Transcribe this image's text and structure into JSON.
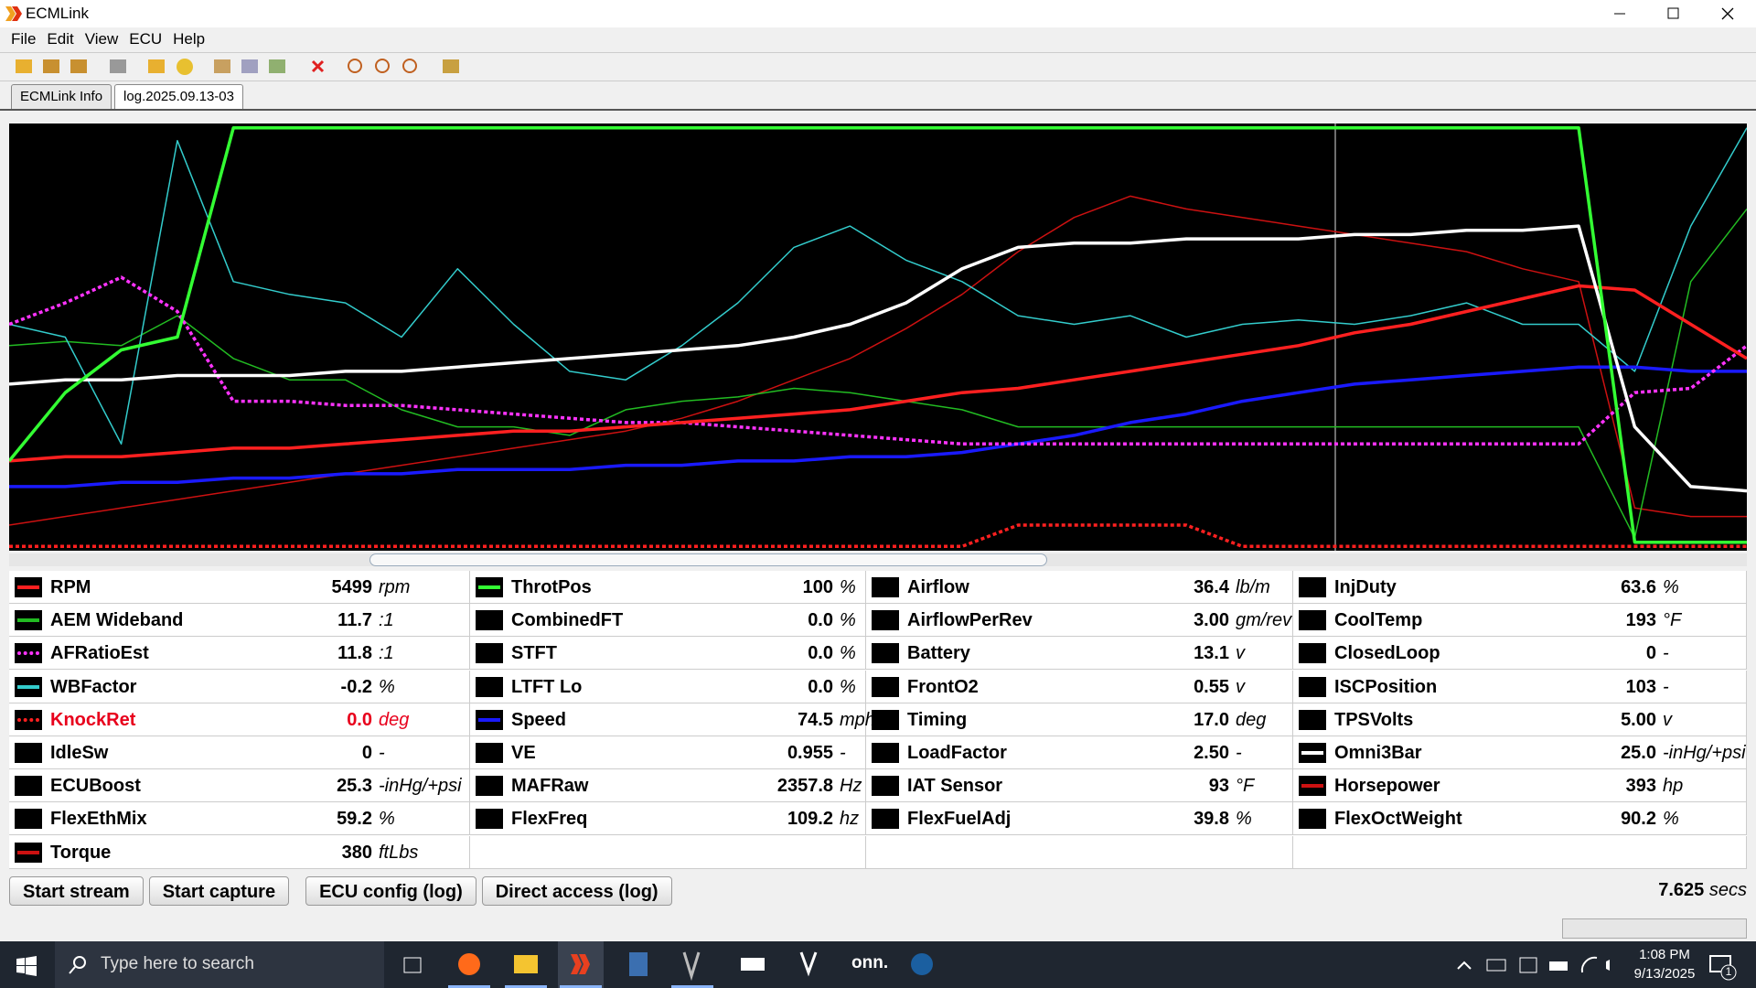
{
  "window": {
    "title": "ECMLink"
  },
  "menu": [
    "File",
    "Edit",
    "View",
    "ECU",
    "Help"
  ],
  "tabs": [
    "ECMLink Info",
    "log.2025.09.13-03"
  ],
  "graph": {
    "traces": [
      {
        "color": "#cc1111",
        "style": "thin",
        "values": [
          6,
          8,
          10,
          12,
          14,
          16,
          18,
          20,
          22,
          24,
          26,
          28,
          31,
          35,
          40,
          45,
          52,
          60,
          70,
          78,
          83,
          80,
          78,
          76,
          74,
          72,
          70,
          66,
          63,
          10,
          8,
          8
        ]
      },
      {
        "color": "#22bb22",
        "style": "thin",
        "values": [
          48,
          49,
          48,
          55,
          45,
          40,
          40,
          33,
          29,
          29,
          27,
          33,
          35,
          36,
          38,
          37,
          35,
          33,
          29,
          29,
          29,
          29,
          29,
          29,
          29,
          29,
          29,
          29,
          29,
          3,
          63,
          80
        ]
      },
      {
        "color": "#33cccc",
        "style": "thin",
        "values": [
          53,
          50,
          25,
          96,
          63,
          60,
          58,
          50,
          66,
          53,
          42,
          40,
          48,
          58,
          71,
          76,
          68,
          63,
          55,
          53,
          55,
          50,
          53,
          54,
          53,
          55,
          58,
          53,
          53,
          42,
          76,
          99
        ]
      },
      {
        "color": "#1a1aff",
        "style": "thick",
        "values": [
          15,
          15,
          16,
          16,
          17,
          17,
          18,
          18,
          19,
          19,
          19,
          20,
          20,
          21,
          21,
          22,
          22,
          23,
          25,
          27,
          30,
          32,
          35,
          37,
          39,
          40,
          41,
          42,
          43,
          43,
          42,
          42
        ]
      },
      {
        "color": "#ff33ff",
        "style": "dotted",
        "values": [
          53,
          58,
          64,
          56,
          35,
          35,
          34,
          34,
          33,
          32,
          31,
          30,
          30,
          29,
          28,
          27,
          26,
          25,
          25,
          25,
          25,
          25,
          25,
          25,
          25,
          25,
          25,
          25,
          25,
          37,
          38,
          48
        ]
      },
      {
        "color": "#ff2020",
        "style": "dotted",
        "values": [
          1,
          1,
          1,
          1,
          1,
          1,
          1,
          1,
          1,
          1,
          1,
          1,
          1,
          1,
          1,
          1,
          1,
          1,
          6,
          6,
          6,
          6,
          1,
          1,
          1,
          1,
          1,
          1,
          1,
          1,
          1,
          1
        ]
      },
      {
        "color": "#ff2020",
        "style": "thick",
        "values": [
          21,
          22,
          22,
          23,
          24,
          24,
          25,
          26,
          27,
          28,
          28,
          29,
          30,
          31,
          32,
          33,
          35,
          37,
          38,
          40,
          42,
          44,
          46,
          48,
          51,
          53,
          56,
          59,
          62,
          61,
          53,
          45
        ]
      },
      {
        "color": "#ffffff",
        "style": "thick",
        "values": [
          39,
          40,
          40,
          41,
          41,
          41,
          42,
          42,
          43,
          44,
          45,
          46,
          47,
          48,
          50,
          53,
          58,
          66,
          71,
          72,
          72,
          73,
          73,
          73,
          74,
          74,
          75,
          75,
          76,
          29,
          15,
          14
        ]
      },
      {
        "color": "#33ff33",
        "style": "thick",
        "values": [
          21,
          37,
          47,
          50,
          99,
          99,
          99,
          99,
          99,
          99,
          99,
          99,
          99,
          99,
          99,
          99,
          99,
          99,
          99,
          99,
          99,
          99,
          99,
          99,
          99,
          99,
          99,
          99,
          99,
          2,
          2,
          2
        ]
      }
    ]
  },
  "parameters": {
    "columns": [
      [
        {
          "name": "RPM",
          "value": "5499",
          "unit": "rpm",
          "line_color": "#ff2020"
        },
        {
          "name": "AEM Wideband",
          "value": "11.7",
          "unit": ":1",
          "line_color": "#22bb22"
        },
        {
          "name": "AFRatioEst",
          "value": "11.8",
          "unit": ":1",
          "line_color": "#ff33ff",
          "dotted": true
        },
        {
          "name": "WBFactor",
          "value": "-0.2",
          "unit": "%",
          "line_color": "#33cccc"
        },
        {
          "name": "KnockRet",
          "value": "0.0",
          "unit": "deg",
          "line_color": "#ff2020",
          "dotted": true,
          "text_color": "#e8001c"
        },
        {
          "name": "IdleSw",
          "value": "0",
          "unit": "-"
        },
        {
          "name": "ECUBoost",
          "value": "25.3",
          "unit": "-inHg/+psi"
        },
        {
          "name": "FlexEthMix",
          "value": "59.2",
          "unit": "%"
        },
        {
          "name": "Torque",
          "value": "380",
          "unit": "ftLbs",
          "line_color": "#cc1111"
        }
      ],
      [
        {
          "name": "ThrotPos",
          "value": "100",
          "unit": "%",
          "line_color": "#33ff33"
        },
        {
          "name": "CombinedFT",
          "value": "0.0",
          "unit": "%"
        },
        {
          "name": "STFT",
          "value": "0.0",
          "unit": "%"
        },
        {
          "name": "LTFT Lo",
          "value": "0.0",
          "unit": "%"
        },
        {
          "name": "Speed",
          "value": "74.5",
          "unit": "mph",
          "line_color": "#1a1aff"
        },
        {
          "name": "VE",
          "value": "0.955",
          "unit": "-"
        },
        {
          "name": "MAFRaw",
          "value": "2357.8",
          "unit": "Hz"
        },
        {
          "name": "FlexFreq",
          "value": "109.2",
          "unit": "hz"
        }
      ],
      [
        {
          "name": "Airflow",
          "value": "36.4",
          "unit": "lb/m"
        },
        {
          "name": "AirflowPerRev",
          "value": "3.00",
          "unit": "gm/rev"
        },
        {
          "name": "Battery",
          "value": "13.1",
          "unit": "v"
        },
        {
          "name": "FrontO2",
          "value": "0.55",
          "unit": "v"
        },
        {
          "name": "Timing",
          "value": "17.0",
          "unit": "deg"
        },
        {
          "name": "LoadFactor",
          "value": "2.50",
          "unit": "-"
        },
        {
          "name": "IAT Sensor",
          "value": "93",
          "unit": "°F"
        },
        {
          "name": "FlexFuelAdj",
          "value": "39.8",
          "unit": "%"
        }
      ],
      [
        {
          "name": "InjDuty",
          "value": "63.6",
          "unit": "%"
        },
        {
          "name": "CoolTemp",
          "value": "193",
          "unit": "°F"
        },
        {
          "name": "ClosedLoop",
          "value": "0",
          "unit": "-"
        },
        {
          "name": "ISCPosition",
          "value": "103",
          "unit": "-"
        },
        {
          "name": "TPSVolts",
          "value": "5.00",
          "unit": "v"
        },
        {
          "name": "Omni3Bar",
          "value": "25.0",
          "unit": "-inHg/+psi",
          "line_color": "#ffffff"
        },
        {
          "name": "Horsepower",
          "value": "393",
          "unit": "hp",
          "line_color": "#cc1111"
        },
        {
          "name": "FlexOctWeight",
          "value": "90.2",
          "unit": "%"
        }
      ]
    ]
  },
  "buttons": [
    "Start stream",
    "Start capture",
    "ECU config (log)",
    "Direct access (log)"
  ],
  "elapsed": {
    "value": "7.625",
    "unit": "secs"
  },
  "taskbar": {
    "search": "Type here to search",
    "onn": "onn.",
    "time": "1:08 PM",
    "date": "9/13/2025",
    "notifications": "1"
  }
}
